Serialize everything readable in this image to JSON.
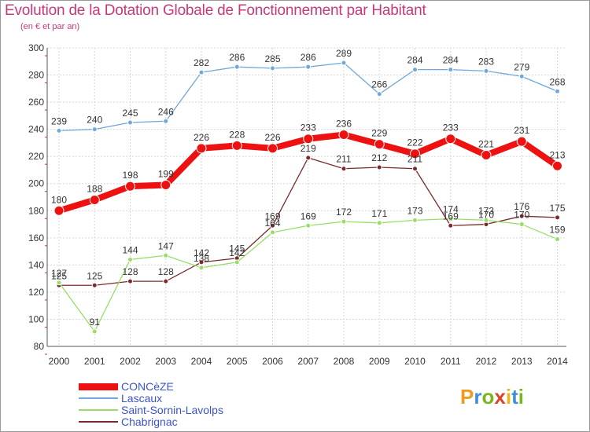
{
  "title": "Evolution de la Dotation Globale de Fonctionnement par Habitant",
  "subtitle": "(en € et par an)",
  "logo": [
    "P",
    "r",
    "o",
    "x",
    "i",
    "t",
    "i"
  ],
  "logo_colors": [
    "#f29a1f",
    "#3d8fd6",
    "#7ab51d",
    "#e04028",
    "#f2b319",
    "#3d8fd6",
    "#7ab51d"
  ],
  "chart_data": {
    "type": "line",
    "title": "Evolution de la Dotation Globale de Fonctionnement par Habitant",
    "subtitle": "(en € et par an)",
    "x": [
      "2000",
      "2001",
      "2002",
      "2003",
      "2004",
      "2005",
      "2006",
      "2007",
      "2008",
      "2009",
      "2010",
      "2011",
      "2012",
      "2013",
      "2014"
    ],
    "ylim": [
      80,
      300
    ],
    "yticks": [
      80,
      100,
      120,
      140,
      160,
      180,
      200,
      220,
      240,
      260,
      280,
      300
    ],
    "grid": true,
    "legend_position": "bottom-left",
    "series": [
      {
        "name": "CONCèZE",
        "color": "#ee1111",
        "values": [
          180,
          188,
          198,
          199,
          226,
          228,
          226,
          233,
          236,
          229,
          222,
          233,
          221,
          231,
          213
        ]
      },
      {
        "name": "Lascaux",
        "color": "#6fa8dc",
        "values": [
          239,
          240,
          245,
          246,
          282,
          286,
          285,
          286,
          289,
          266,
          284,
          284,
          283,
          279,
          268
        ]
      },
      {
        "name": "Saint-Sornin-Lavolps",
        "color": "#99dd66",
        "values": [
          127,
          91,
          144,
          147,
          138,
          142,
          164,
          169,
          172,
          171,
          173,
          174,
          173,
          170,
          159
        ]
      },
      {
        "name": "Chabrignac",
        "color": "#7a2a2a",
        "values": [
          125,
          125,
          128,
          128,
          142,
          145,
          169,
          219,
          211,
          212,
          211,
          169,
          170,
          176,
          175
        ]
      }
    ]
  }
}
